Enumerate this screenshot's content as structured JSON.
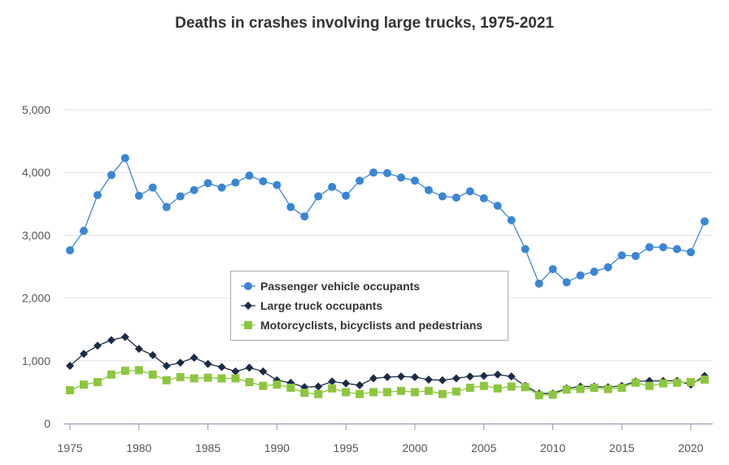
{
  "chart_data": {
    "type": "line",
    "title": "Deaths in crashes involving large trucks, 1975-2021",
    "xlabel": "",
    "ylabel": "",
    "x": [
      1975,
      1976,
      1977,
      1978,
      1979,
      1980,
      1981,
      1982,
      1983,
      1984,
      1985,
      1986,
      1987,
      1988,
      1989,
      1990,
      1991,
      1992,
      1993,
      1994,
      1995,
      1996,
      1997,
      1998,
      1999,
      2000,
      2001,
      2002,
      2003,
      2004,
      2005,
      2006,
      2007,
      2008,
      2009,
      2010,
      2011,
      2012,
      2013,
      2014,
      2015,
      2016,
      2017,
      2018,
      2019,
      2020,
      2021
    ],
    "xlim": [
      1975,
      2021
    ],
    "xticks": [
      "1975",
      "1980",
      "1985",
      "1990",
      "1995",
      "2000",
      "2005",
      "2010",
      "2015",
      "2020"
    ],
    "ylim": [
      0,
      5000
    ],
    "yticks": [
      "0",
      "1,000",
      "2,000",
      "3,000",
      "4,000",
      "5,000"
    ],
    "grid": true,
    "legend_position": "center",
    "series": [
      {
        "name": "Passenger vehicle occupants",
        "color": "#3a86d4",
        "marker": "circle",
        "values": [
          2760,
          3070,
          3640,
          3960,
          4230,
          3630,
          3760,
          3450,
          3620,
          3720,
          3830,
          3760,
          3840,
          3950,
          3860,
          3800,
          3450,
          3300,
          3620,
          3770,
          3630,
          3870,
          4000,
          3990,
          3920,
          3870,
          3720,
          3620,
          3600,
          3700,
          3590,
          3470,
          3240,
          2780,
          2230,
          2460,
          2250,
          2360,
          2420,
          2490,
          2680,
          2670,
          2810,
          2810,
          2780,
          2730,
          3220
        ]
      },
      {
        "name": "Large truck occupants",
        "color": "#1a2b45",
        "marker": "diamond",
        "values": [
          920,
          1110,
          1240,
          1330,
          1380,
          1190,
          1090,
          920,
          970,
          1050,
          950,
          900,
          830,
          890,
          830,
          690,
          650,
          580,
          590,
          670,
          640,
          610,
          720,
          740,
          750,
          740,
          700,
          690,
          720,
          750,
          760,
          780,
          750,
          600,
          480,
          480,
          560,
          590,
          590,
          580,
          600,
          670,
          680,
          680,
          680,
          620,
          760
        ]
      },
      {
        "name": "Motorcyclists, bicyclists and pedestrians",
        "color": "#8cc63f",
        "marker": "square",
        "values": [
          530,
          620,
          660,
          780,
          840,
          850,
          780,
          690,
          740,
          720,
          730,
          720,
          720,
          660,
          600,
          620,
          570,
          490,
          470,
          560,
          500,
          470,
          500,
          500,
          520,
          500,
          520,
          470,
          510,
          570,
          600,
          560,
          590,
          580,
          450,
          460,
          540,
          550,
          570,
          550,
          570,
          650,
          600,
          640,
          650,
          660,
          700
        ]
      }
    ]
  }
}
